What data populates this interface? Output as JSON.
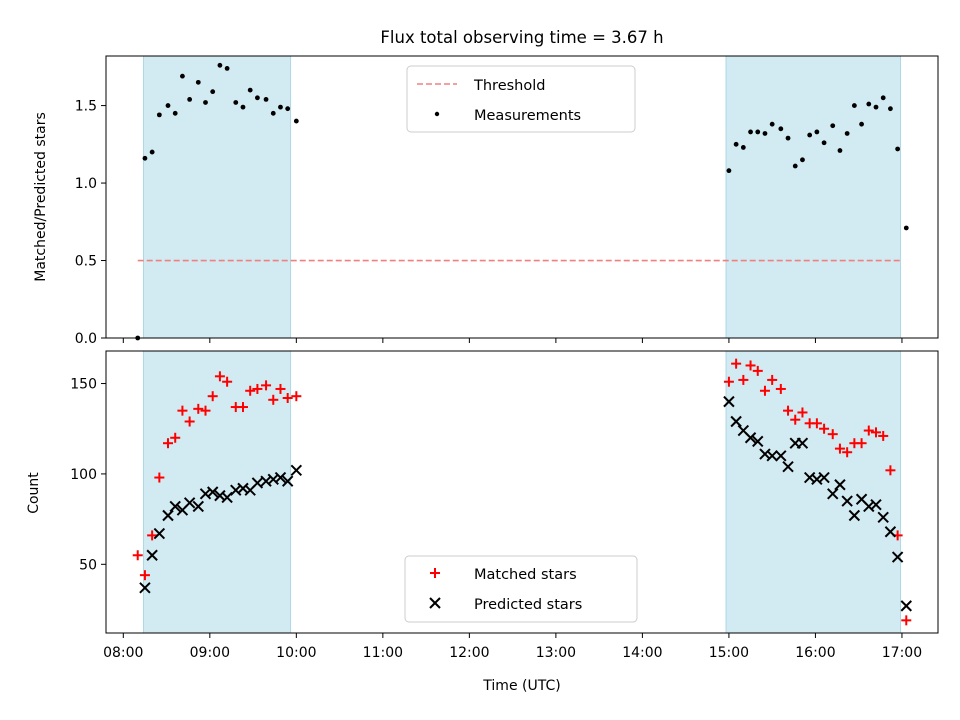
{
  "colors": {
    "band": "#add8e6",
    "threshold": "#f08080",
    "measurement": "#000000",
    "matched": "#ff0000",
    "predicted": "#000000"
  },
  "chart_data": [
    {
      "type": "scatter",
      "title": "Flux total observing time = 3.67 h",
      "ylabel": "Matched/Predicted stars",
      "xlabel": "",
      "xlim": [
        "07:48",
        "17:25"
      ],
      "ylim": [
        0,
        1.82
      ],
      "y_ticks": [
        0.0,
        0.5,
        1.0,
        1.5
      ],
      "y_tick_labels": [
        "0.0",
        "0.5",
        "1.0",
        "1.5"
      ],
      "shaded_intervals": [
        [
          "08:14",
          "09:56"
        ],
        [
          "14:58",
          "16:59"
        ]
      ],
      "threshold": {
        "name": "Threshold",
        "y": 0.5,
        "x_range": [
          "08:10",
          "17:00"
        ]
      },
      "legend": {
        "position": "top-center",
        "entries": [
          "Threshold",
          "Measurements"
        ]
      },
      "series": [
        {
          "name": "Measurements",
          "marker": "dot",
          "points": [
            [
              "08:10",
              0.0
            ],
            [
              "08:15",
              1.16
            ],
            [
              "08:20",
              1.2
            ],
            [
              "08:25",
              1.44
            ],
            [
              "08:31",
              1.5
            ],
            [
              "08:36",
              1.45
            ],
            [
              "08:41",
              1.69
            ],
            [
              "08:46",
              1.54
            ],
            [
              "08:52",
              1.65
            ],
            [
              "08:57",
              1.52
            ],
            [
              "09:02",
              1.59
            ],
            [
              "09:07",
              1.76
            ],
            [
              "09:12",
              1.74
            ],
            [
              "09:18",
              1.52
            ],
            [
              "09:23",
              1.49
            ],
            [
              "09:28",
              1.6
            ],
            [
              "09:33",
              1.55
            ],
            [
              "09:39",
              1.54
            ],
            [
              "09:44",
              1.45
            ],
            [
              "09:49",
              1.49
            ],
            [
              "09:54",
              1.48
            ],
            [
              "10:00",
              1.4
            ],
            [
              "15:00",
              1.08
            ],
            [
              "15:05",
              1.25
            ],
            [
              "15:10",
              1.23
            ],
            [
              "15:15",
              1.33
            ],
            [
              "15:20",
              1.33
            ],
            [
              "15:25",
              1.32
            ],
            [
              "15:30",
              1.38
            ],
            [
              "15:36",
              1.35
            ],
            [
              "15:41",
              1.29
            ],
            [
              "15:46",
              1.11
            ],
            [
              "15:51",
              1.15
            ],
            [
              "15:56",
              1.31
            ],
            [
              "16:01",
              1.33
            ],
            [
              "16:06",
              1.26
            ],
            [
              "16:12",
              1.37
            ],
            [
              "16:17",
              1.21
            ],
            [
              "16:22",
              1.32
            ],
            [
              "16:27",
              1.5
            ],
            [
              "16:32",
              1.38
            ],
            [
              "16:37",
              1.51
            ],
            [
              "16:42",
              1.49
            ],
            [
              "16:47",
              1.55
            ],
            [
              "16:52",
              1.48
            ],
            [
              "16:57",
              1.22
            ],
            [
              "17:03",
              0.71
            ]
          ]
        }
      ]
    },
    {
      "type": "scatter",
      "title": "",
      "ylabel": "Count",
      "xlabel": "Time (UTC)",
      "xlim": [
        "07:48",
        "17:25"
      ],
      "ylim": [
        12,
        168
      ],
      "y_ticks": [
        50,
        100,
        150
      ],
      "y_tick_labels": [
        "50",
        "100",
        "150"
      ],
      "x_ticks": [
        "08:00",
        "09:00",
        "10:00",
        "11:00",
        "12:00",
        "13:00",
        "14:00",
        "15:00",
        "16:00",
        "17:00"
      ],
      "x_tick_labels": [
        "08:00",
        "09:00",
        "10:00",
        "11:00",
        "12:00",
        "13:00",
        "14:00",
        "15:00",
        "16:00",
        "17:00"
      ],
      "shaded_intervals": [
        [
          "08:14",
          "09:56"
        ],
        [
          "14:58",
          "16:59"
        ]
      ],
      "legend": {
        "position": "bottom-center",
        "entries": [
          "Matched stars",
          "Predicted stars"
        ]
      },
      "series": [
        {
          "name": "Matched stars",
          "marker": "plus",
          "points": [
            [
              "08:10",
              55
            ],
            [
              "08:15",
              44
            ],
            [
              "08:20",
              66
            ],
            [
              "08:25",
              98
            ],
            [
              "08:31",
              117
            ],
            [
              "08:36",
              120
            ],
            [
              "08:41",
              135
            ],
            [
              "08:46",
              129
            ],
            [
              "08:52",
              136
            ],
            [
              "08:57",
              135
            ],
            [
              "09:02",
              143
            ],
            [
              "09:07",
              154
            ],
            [
              "09:12",
              151
            ],
            [
              "09:18",
              137
            ],
            [
              "09:23",
              137
            ],
            [
              "09:28",
              146
            ],
            [
              "09:33",
              147
            ],
            [
              "09:39",
              149
            ],
            [
              "09:44",
              141
            ],
            [
              "09:49",
              147
            ],
            [
              "09:54",
              142
            ],
            [
              "10:00",
              143
            ],
            [
              "15:00",
              151
            ],
            [
              "15:05",
              161
            ],
            [
              "15:10",
              152
            ],
            [
              "15:15",
              160
            ],
            [
              "15:20",
              157
            ],
            [
              "15:25",
              146
            ],
            [
              "15:30",
              152
            ],
            [
              "15:36",
              147
            ],
            [
              "15:41",
              135
            ],
            [
              "15:46",
              130
            ],
            [
              "15:51",
              134
            ],
            [
              "15:56",
              128
            ],
            [
              "16:01",
              128
            ],
            [
              "16:06",
              125
            ],
            [
              "16:12",
              122
            ],
            [
              "16:17",
              114
            ],
            [
              "16:22",
              112
            ],
            [
              "16:27",
              117
            ],
            [
              "16:32",
              117
            ],
            [
              "16:37",
              124
            ],
            [
              "16:42",
              123
            ],
            [
              "16:47",
              121
            ],
            [
              "16:52",
              102
            ],
            [
              "16:57",
              66
            ],
            [
              "17:03",
              19
            ]
          ]
        },
        {
          "name": "Predicted stars",
          "marker": "cross",
          "points": [
            [
              "08:15",
              37
            ],
            [
              "08:20",
              55
            ],
            [
              "08:25",
              67
            ],
            [
              "08:31",
              77
            ],
            [
              "08:36",
              82
            ],
            [
              "08:41",
              80
            ],
            [
              "08:46",
              84
            ],
            [
              "08:52",
              82
            ],
            [
              "08:57",
              89
            ],
            [
              "09:02",
              90
            ],
            [
              "09:07",
              88
            ],
            [
              "09:12",
              87
            ],
            [
              "09:18",
              91
            ],
            [
              "09:23",
              92
            ],
            [
              "09:28",
              91
            ],
            [
              "09:33",
              95
            ],
            [
              "09:39",
              96
            ],
            [
              "09:44",
              97
            ],
            [
              "09:49",
              98
            ],
            [
              "09:54",
              96
            ],
            [
              "10:00",
              102
            ],
            [
              "15:00",
              140
            ],
            [
              "15:05",
              129
            ],
            [
              "15:10",
              124
            ],
            [
              "15:15",
              120
            ],
            [
              "15:20",
              118
            ],
            [
              "15:25",
              111
            ],
            [
              "15:30",
              110
            ],
            [
              "15:36",
              110
            ],
            [
              "15:41",
              104
            ],
            [
              "15:46",
              117
            ],
            [
              "15:51",
              117
            ],
            [
              "15:56",
              98
            ],
            [
              "16:01",
              97
            ],
            [
              "16:06",
              98
            ],
            [
              "16:12",
              89
            ],
            [
              "16:17",
              94
            ],
            [
              "16:22",
              85
            ],
            [
              "16:27",
              77
            ],
            [
              "16:32",
              86
            ],
            [
              "16:37",
              82
            ],
            [
              "16:42",
              83
            ],
            [
              "16:47",
              76
            ],
            [
              "16:52",
              68
            ],
            [
              "16:57",
              54
            ],
            [
              "17:03",
              27
            ]
          ]
        }
      ]
    }
  ]
}
